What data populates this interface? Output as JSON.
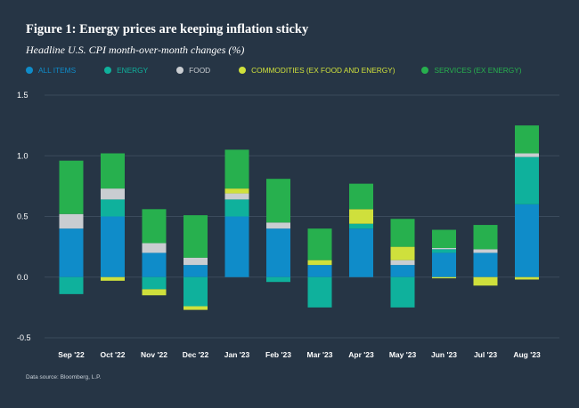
{
  "figure": {
    "title": "Figure 1: Energy prices are keeping inflation sticky",
    "subtitle": "Headline U.S. CPI month-over-month changes (%)",
    "source": "Data source: Bloomberg, L.P."
  },
  "colors": {
    "all_items": "#0f8cc9",
    "energy": "#0fb19c",
    "food": "#c9cdd1",
    "commodities": "#cfe03c",
    "services": "#27b04e",
    "grid": "#3b4b5c",
    "label": "#ffffff"
  },
  "chart_data": {
    "type": "bar",
    "title": "Headline U.S. CPI month-over-month changes (%)",
    "xlabel": "",
    "ylabel": "",
    "ylim": [
      -0.5,
      1.5
    ],
    "yticks": [
      -0.5,
      0.0,
      0.5,
      1.0,
      1.5
    ],
    "ytick_labels": [
      "-0.5",
      "0.0",
      "0.5",
      "1.0",
      "1.5"
    ],
    "grid": true,
    "legend_position": "top-left",
    "categories": [
      "Sep '22",
      "Oct '22",
      "Nov '22",
      "Dec '22",
      "Jan '23",
      "Feb '23",
      "Mar '23",
      "Apr '23",
      "May '23",
      "Jun '23",
      "Jul '23",
      "Aug '23"
    ],
    "series": [
      {
        "key": "all_items",
        "name": "ALL ITEMS",
        "color": "#0f8cc9",
        "values": [
          0.4,
          0.5,
          0.2,
          0.1,
          0.5,
          0.4,
          0.1,
          0.4,
          0.1,
          0.2,
          0.2,
          0.6
        ]
      },
      {
        "key": "energy",
        "name": "ENERGY",
        "color": "#0fb19c",
        "values": [
          -0.14,
          0.14,
          -0.1,
          -0.24,
          0.14,
          -0.04,
          -0.25,
          0.04,
          -0.25,
          0.03,
          0.0,
          0.39
        ]
      },
      {
        "key": "food",
        "name": "FOOD",
        "color": "#c9cdd1",
        "values": [
          0.12,
          0.09,
          0.08,
          0.06,
          0.05,
          0.05,
          0.0,
          0.0,
          0.04,
          0.01,
          0.03,
          0.03
        ]
      },
      {
        "key": "commodities",
        "name": "COMMODITIES (EX FOOD AND ENERGY)",
        "color": "#cfe03c",
        "values": [
          0.0,
          -0.03,
          -0.05,
          -0.03,
          0.04,
          0.0,
          0.04,
          0.12,
          0.11,
          -0.01,
          -0.07,
          -0.02
        ]
      },
      {
        "key": "services",
        "name": "SERVICES (EX ENERGY)",
        "color": "#27b04e",
        "values": [
          0.44,
          0.29,
          0.28,
          0.35,
          0.32,
          0.36,
          0.26,
          0.21,
          0.23,
          0.15,
          0.2,
          0.23
        ]
      }
    ]
  }
}
